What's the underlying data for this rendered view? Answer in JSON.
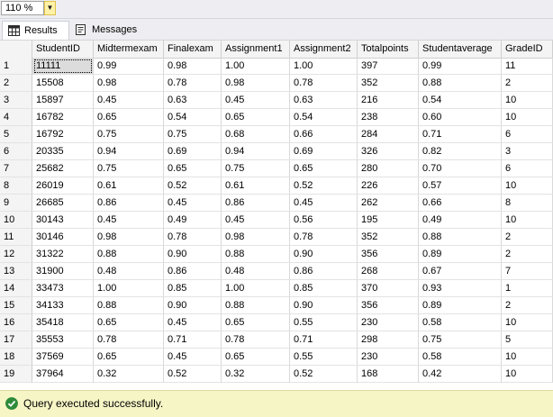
{
  "zoom": {
    "value": "110 %"
  },
  "tabs": [
    {
      "label": "Results",
      "icon": "grid-icon"
    },
    {
      "label": "Messages",
      "icon": "messages-icon"
    }
  ],
  "grid": {
    "columns": [
      "StudentID",
      "Midtermexam",
      "Finalexam",
      "Assignment1",
      "Assignment2",
      "Totalpoints",
      "Studentaverage",
      "GradeID"
    ],
    "rows": [
      [
        "1",
        "11111",
        "0.99",
        "0.98",
        "1.00",
        "1.00",
        "397",
        "0.99",
        "11"
      ],
      [
        "2",
        "15508",
        "0.98",
        "0.78",
        "0.98",
        "0.78",
        "352",
        "0.88",
        "2"
      ],
      [
        "3",
        "15897",
        "0.45",
        "0.63",
        "0.45",
        "0.63",
        "216",
        "0.54",
        "10"
      ],
      [
        "4",
        "16782",
        "0.65",
        "0.54",
        "0.65",
        "0.54",
        "238",
        "0.60",
        "10"
      ],
      [
        "5",
        "16792",
        "0.75",
        "0.75",
        "0.68",
        "0.66",
        "284",
        "0.71",
        "6"
      ],
      [
        "6",
        "20335",
        "0.94",
        "0.69",
        "0.94",
        "0.69",
        "326",
        "0.82",
        "3"
      ],
      [
        "7",
        "25682",
        "0.75",
        "0.65",
        "0.75",
        "0.65",
        "280",
        "0.70",
        "6"
      ],
      [
        "8",
        "26019",
        "0.61",
        "0.52",
        "0.61",
        "0.52",
        "226",
        "0.57",
        "10"
      ],
      [
        "9",
        "26685",
        "0.86",
        "0.45",
        "0.86",
        "0.45",
        "262",
        "0.66",
        "8"
      ],
      [
        "10",
        "30143",
        "0.45",
        "0.49",
        "0.45",
        "0.56",
        "195",
        "0.49",
        "10"
      ],
      [
        "11",
        "30146",
        "0.98",
        "0.78",
        "0.98",
        "0.78",
        "352",
        "0.88",
        "2"
      ],
      [
        "12",
        "31322",
        "0.88",
        "0.90",
        "0.88",
        "0.90",
        "356",
        "0.89",
        "2"
      ],
      [
        "13",
        "31900",
        "0.48",
        "0.86",
        "0.48",
        "0.86",
        "268",
        "0.67",
        "7"
      ],
      [
        "14",
        "33473",
        "1.00",
        "0.85",
        "1.00",
        "0.85",
        "370",
        "0.93",
        "1"
      ],
      [
        "15",
        "34133",
        "0.88",
        "0.90",
        "0.88",
        "0.90",
        "356",
        "0.89",
        "2"
      ],
      [
        "16",
        "35418",
        "0.65",
        "0.45",
        "0.65",
        "0.55",
        "230",
        "0.58",
        "10"
      ],
      [
        "17",
        "35553",
        "0.78",
        "0.71",
        "0.78",
        "0.71",
        "298",
        "0.75",
        "5"
      ],
      [
        "18",
        "37569",
        "0.65",
        "0.45",
        "0.65",
        "0.55",
        "230",
        "0.58",
        "10"
      ],
      [
        "19",
        "37964",
        "0.32",
        "0.52",
        "0.32",
        "0.52",
        "168",
        "0.42",
        "10"
      ]
    ]
  },
  "status": {
    "text": "Query executed successfully.",
    "icon": "check-circle-icon",
    "color": "#2e8b3a"
  }
}
